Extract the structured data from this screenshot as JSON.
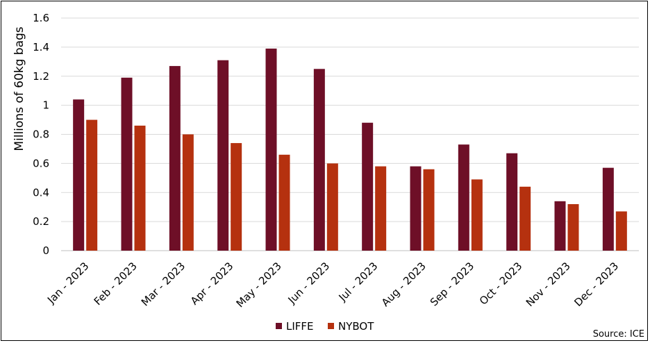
{
  "chart_data": {
    "type": "bar",
    "ylabel": "Millions of 60kg bags",
    "xlabel": "",
    "ylim": [
      0,
      1.6
    ],
    "yticks": [
      "0",
      "0.2",
      "0.4",
      "0.6",
      "0.8",
      "1",
      "1.2",
      "1.4",
      "1.6"
    ],
    "grid": true,
    "legend_position": "bottom",
    "categories": [
      "Jan - 2023",
      "Feb - 2023",
      "Mar - 2023",
      "Apr - 2023",
      "May - 2023",
      "Jun - 2023",
      "Jul - 2023",
      "Aug - 2023",
      "Sep - 2023",
      "Oct - 2023",
      "Nov - 2023",
      "Dec - 2023"
    ],
    "series": [
      {
        "name": "LIFFE",
        "color": "#6e0f27",
        "values": [
          1.04,
          1.19,
          1.27,
          1.31,
          1.39,
          1.25,
          0.88,
          0.58,
          0.73,
          0.67,
          0.34,
          0.57
        ]
      },
      {
        "name": "NYBOT",
        "color": "#b5310f",
        "values": [
          0.9,
          0.86,
          0.8,
          0.74,
          0.66,
          0.6,
          0.58,
          0.56,
          0.49,
          0.44,
          0.32,
          0.27
        ]
      }
    ],
    "source": "Source: ICE"
  }
}
